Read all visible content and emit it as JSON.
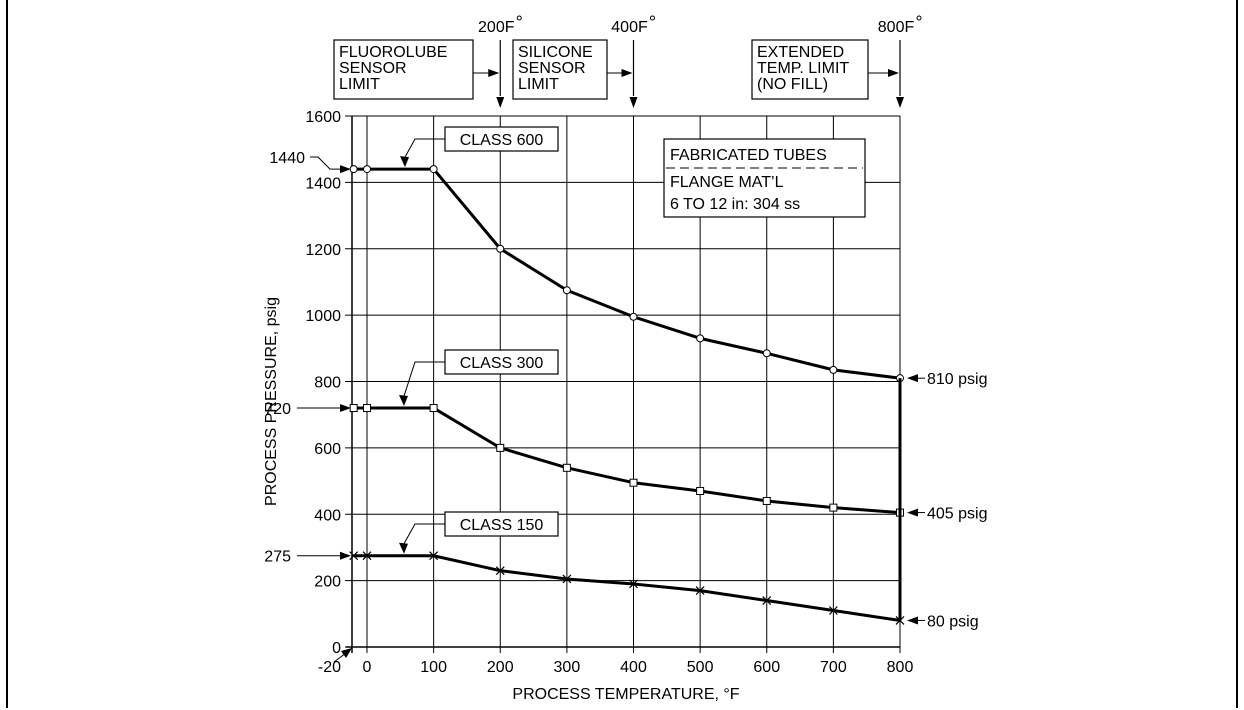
{
  "chart_data": {
    "type": "line",
    "xlabel": "PROCESS TEMPERATURE, °F",
    "ylabel": "PROCESS PRESSURE, psig",
    "xlim": [
      -20,
      800
    ],
    "ylim": [
      0,
      1600
    ],
    "x_ticks": [
      0,
      100,
      200,
      300,
      400,
      500,
      600,
      700,
      800
    ],
    "x_tick_labels": [
      "0",
      "100",
      "200",
      "300",
      "400",
      "500",
      "600",
      "700",
      "800"
    ],
    "x_extra_label": "-20",
    "y_ticks": [
      0,
      200,
      400,
      600,
      800,
      1000,
      1200,
      1400,
      1600
    ],
    "y_tick_labels": [
      "0",
      "200",
      "400",
      "600",
      "800",
      "1000",
      "1200",
      "1400",
      "1600"
    ],
    "y_callouts": [
      {
        "value": 1440,
        "label": "1440"
      },
      {
        "value": 720,
        "label": "720"
      },
      {
        "value": 275,
        "label": "275"
      }
    ],
    "grid": true,
    "series": [
      {
        "name": "CLASS 600",
        "marker": "circle",
        "x": [
          -20,
          0,
          100,
          200,
          300,
          400,
          500,
          600,
          700,
          800
        ],
        "y": [
          1440,
          1440,
          1440,
          1200,
          1075,
          995,
          930,
          885,
          835,
          810
        ],
        "end_label": "810 psig"
      },
      {
        "name": "CLASS 300",
        "marker": "square",
        "x": [
          -20,
          0,
          100,
          200,
          300,
          400,
          500,
          600,
          700,
          800
        ],
        "y": [
          720,
          720,
          720,
          600,
          540,
          495,
          470,
          440,
          420,
          405
        ],
        "end_label": "405 psig"
      },
      {
        "name": "CLASS 150",
        "marker": "x",
        "x": [
          -20,
          0,
          100,
          200,
          300,
          400,
          500,
          600,
          700,
          800
        ],
        "y": [
          275,
          275,
          275,
          230,
          205,
          190,
          170,
          140,
          110,
          80
        ],
        "end_label": "80 psig"
      }
    ],
    "temperature_limits": [
      {
        "temp": 200,
        "label": "200°F",
        "box": [
          "FLUOROLUBE",
          "SENSOR",
          "LIMIT"
        ]
      },
      {
        "temp": 400,
        "label": "400°F",
        "box": [
          "SILICONE",
          "SENSOR",
          "LIMIT"
        ]
      },
      {
        "temp": 800,
        "label": "800°F",
        "box": [
          "EXTENDED",
          "TEMP. LIMIT",
          "(NO FILL)"
        ]
      }
    ],
    "info_box": {
      "title": "FABRICATED TUBES",
      "lines": [
        "FLANGE MAT’L",
        "6 TO 12 in: 304 ss"
      ]
    }
  }
}
